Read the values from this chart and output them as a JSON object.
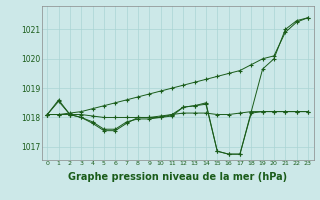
{
  "background_color": "#cce8e8",
  "plot_bg_color": "#cce8e8",
  "line_color": "#1a5c1a",
  "marker_color": "#1a5c1a",
  "xlabel": "Graphe pression niveau de la mer (hPa)",
  "xlabel_fontsize": 7,
  "xlabel_bold": true,
  "ylim": [
    1016.55,
    1021.8
  ],
  "yticks": [
    1017,
    1018,
    1019,
    1020,
    1021
  ],
  "xlim": [
    -0.5,
    23.5
  ],
  "xticks": [
    0,
    1,
    2,
    3,
    4,
    5,
    6,
    7,
    8,
    9,
    10,
    11,
    12,
    13,
    14,
    15,
    16,
    17,
    18,
    19,
    20,
    21,
    22,
    23
  ],
  "xtick_labels": [
    "0",
    "1",
    "2",
    "3",
    "4",
    "5",
    "6",
    "7",
    "8",
    "9",
    "10",
    "11",
    "12",
    "13",
    "14",
    "15",
    "16",
    "17",
    "18",
    "19",
    "20",
    "21",
    "22",
    "23"
  ],
  "grid_color": "#aad4d4",
  "series": [
    {
      "x": [
        0,
        1,
        2,
        3,
        4,
        5,
        6,
        7,
        8,
        9,
        10,
        11,
        12,
        13,
        14,
        15,
        16,
        17,
        18,
        19,
        20,
        21,
        22,
        23
      ],
      "y": [
        1018.1,
        1018.6,
        1018.1,
        1018.0,
        1017.85,
        1017.6,
        1017.6,
        1017.85,
        1017.95,
        1017.95,
        1018.0,
        1018.1,
        1018.35,
        1018.4,
        1018.45,
        1016.85,
        1016.75,
        1016.75,
        1018.2,
        1019.65,
        1020.0,
        1021.0,
        1021.3,
        1021.4
      ]
    },
    {
      "x": [
        0,
        1,
        2,
        3,
        4,
        5,
        6,
        7,
        8,
        9,
        10,
        11,
        12,
        13,
        14,
        15,
        16,
        17,
        18,
        19,
        20,
        21,
        22,
        23
      ],
      "y": [
        1018.1,
        1018.1,
        1018.1,
        1018.1,
        1018.05,
        1018.0,
        1018.0,
        1018.0,
        1018.0,
        1018.0,
        1018.05,
        1018.1,
        1018.15,
        1018.15,
        1018.15,
        1018.1,
        1018.1,
        1018.15,
        1018.2,
        1018.2,
        1018.2,
        1018.2,
        1018.2,
        1018.2
      ]
    },
    {
      "x": [
        0,
        1,
        2,
        3,
        4,
        5,
        6,
        7,
        8,
        9,
        10,
        11,
        12,
        13,
        14,
        15,
        16,
        17,
        18,
        19,
        20,
        21,
        22,
        23
      ],
      "y": [
        1018.1,
        1018.1,
        1018.15,
        1018.2,
        1018.3,
        1018.4,
        1018.5,
        1018.6,
        1018.7,
        1018.8,
        1018.9,
        1019.0,
        1019.1,
        1019.2,
        1019.3,
        1019.4,
        1019.5,
        1019.6,
        1019.8,
        1020.0,
        1020.1,
        1020.9,
        1021.25,
        1021.4
      ]
    },
    {
      "x": [
        0,
        1,
        2,
        3,
        4,
        5,
        6,
        7,
        8,
        9,
        10,
        11,
        12,
        13,
        14,
        15,
        16,
        17,
        18,
        19,
        20,
        21,
        22,
        23
      ],
      "y": [
        1018.1,
        1018.55,
        1018.1,
        1018.0,
        1017.8,
        1017.55,
        1017.55,
        1017.8,
        1018.0,
        1018.0,
        1018.0,
        1018.05,
        1018.35,
        1018.4,
        1018.5,
        1016.85,
        1016.75,
        1016.75,
        1018.15,
        1018.2,
        1018.2,
        1018.2,
        1018.2,
        1018.2
      ]
    }
  ]
}
